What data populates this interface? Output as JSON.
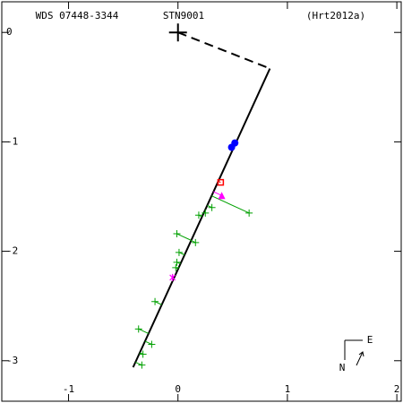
{
  "chart_data": {
    "type": "scatter",
    "title_left": "WDS 07448-3344",
    "title_center": "STN9001",
    "title_right": "(Hrt2012a)",
    "compass": {
      "north": "N",
      "east": "E"
    },
    "xlim": [
      -1.61,
      2.04
    ],
    "ylim": [
      -3.37,
      0.28
    ],
    "xticks": [
      -1,
      0,
      1,
      2
    ],
    "yticks": [
      0,
      -1,
      -2,
      -3
    ],
    "primary": {
      "x": 0,
      "y": 0
    },
    "lines": [
      {
        "x": [
          0.84,
          -0.41
        ],
        "values": [
          -0.33,
          -3.06
        ],
        "color": "#000000",
        "dash": false
      },
      {
        "x": [
          0,
          0.84
        ],
        "values": [
          0,
          -0.33
        ],
        "color": "#000000",
        "dash": true
      }
    ],
    "series": [
      {
        "marker": "plus",
        "color": "#00a000",
        "x": [
          0.65,
          0.31,
          0.25,
          0.19,
          0.16,
          -0.01,
          0.01,
          -0.01,
          -0.02,
          -0.21,
          -0.36,
          -0.24,
          -0.32,
          -0.33
        ],
        "values": [
          -1.65,
          -1.6,
          -1.65,
          -1.67,
          -1.92,
          -1.84,
          -2.01,
          -2.1,
          -2.15,
          -2.46,
          -2.71,
          -2.85,
          -2.94,
          -3.04
        ]
      },
      {
        "marker": "circle",
        "color": "#0000ff",
        "x": [
          0.49,
          0.52
        ],
        "values": [
          -1.05,
          -1.01
        ]
      },
      {
        "marker": "square",
        "color": "#ff0000",
        "x": [
          0.39
        ],
        "values": [
          -1.37
        ]
      },
      {
        "marker": "triangle",
        "color": "#ff00ff",
        "x": [
          0.4
        ],
        "values": [
          -1.49
        ]
      },
      {
        "marker": "star",
        "color": "#ff00ff",
        "x": [
          -0.05
        ],
        "values": [
          -2.24
        ]
      }
    ]
  }
}
